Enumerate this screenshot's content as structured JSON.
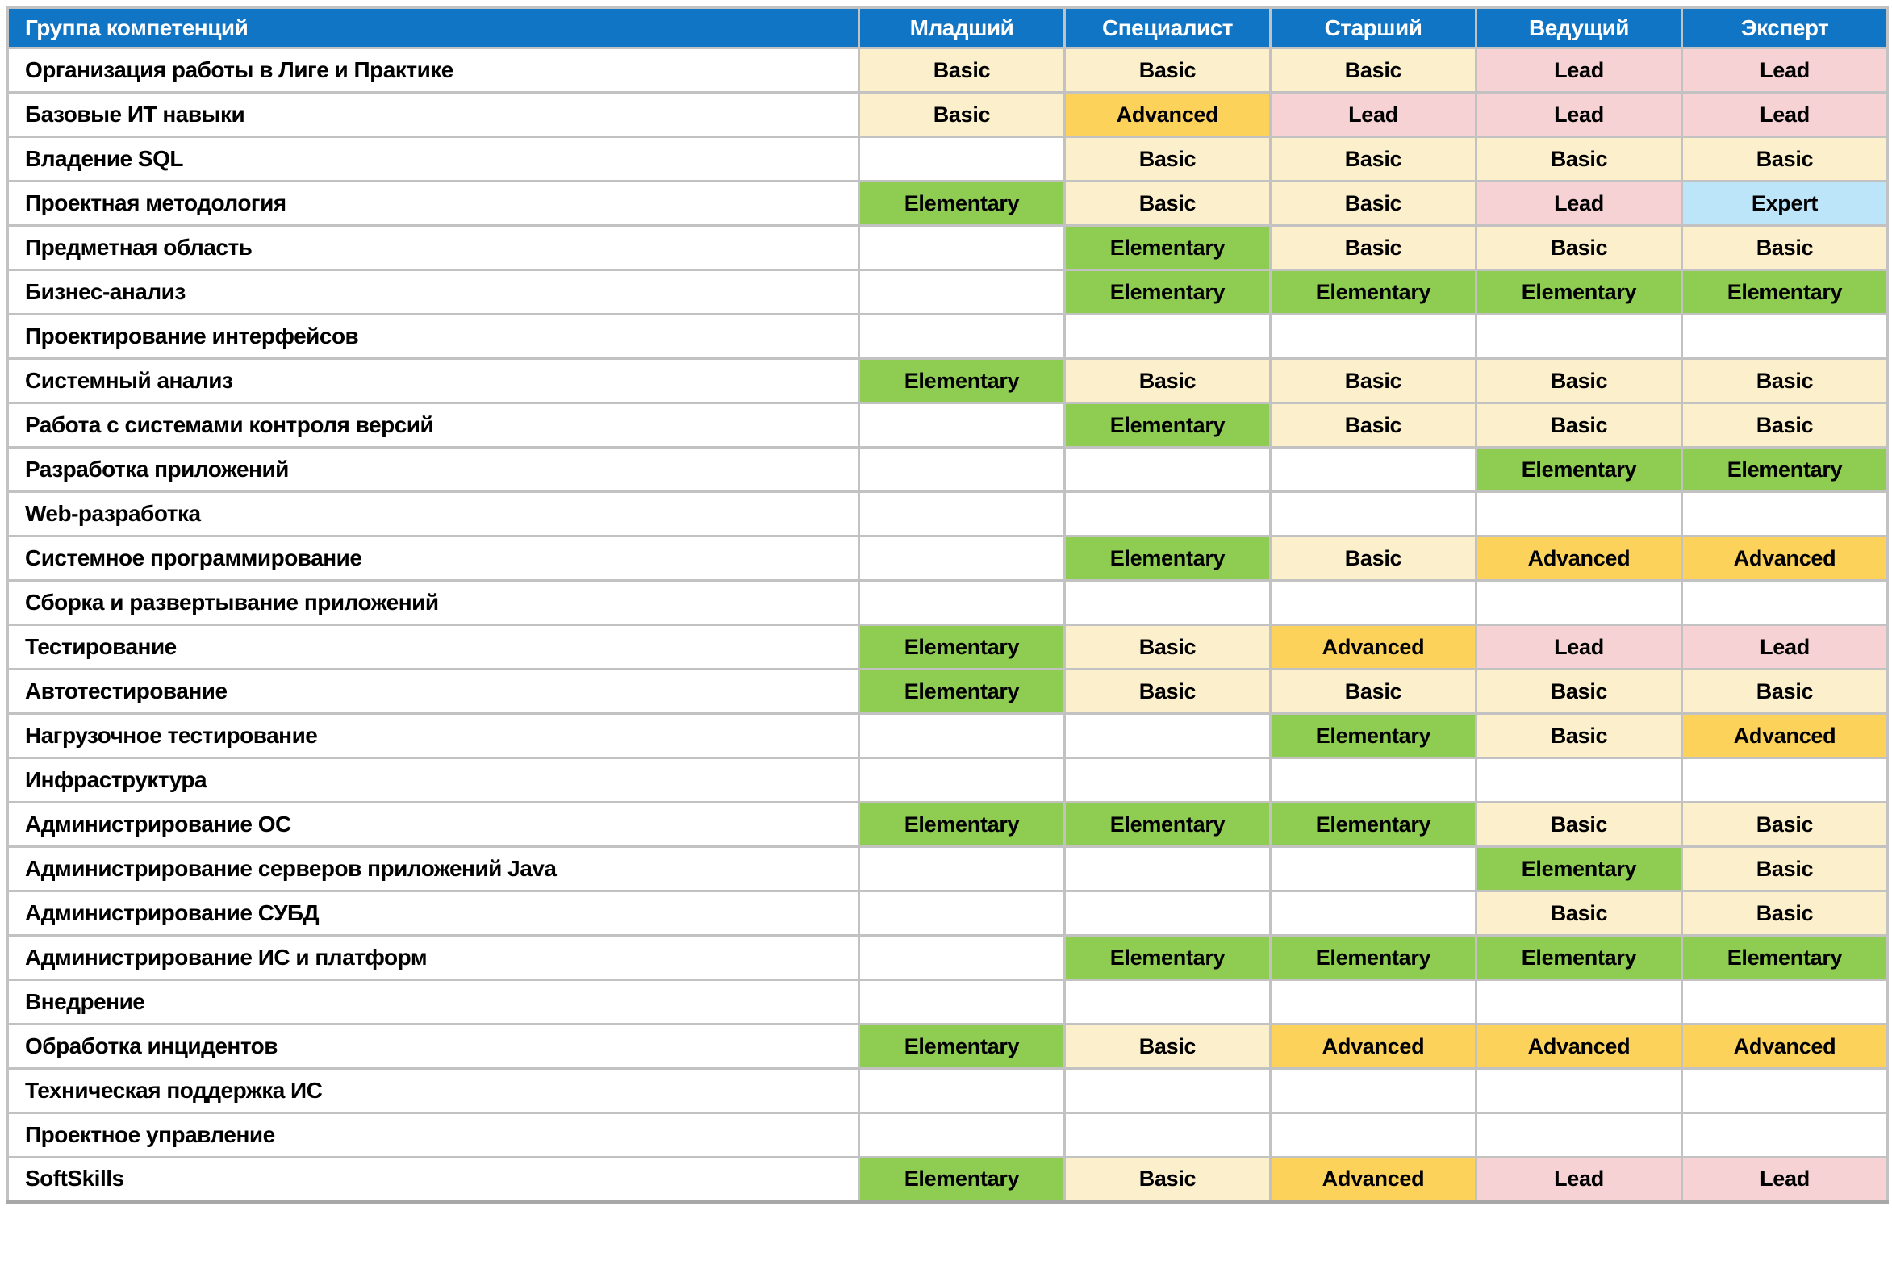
{
  "table": {
    "header": {
      "group_label": "Группа компетенций",
      "columns": [
        "Младший",
        "Специалист",
        "Старший",
        "Ведущий",
        "Эксперт"
      ]
    },
    "rows": [
      {
        "label": "Организация работы в Лиге и Практике",
        "levels": [
          "Basic",
          "Basic",
          "Basic",
          "Lead",
          "Lead"
        ]
      },
      {
        "label": "Базовые ИТ навыки",
        "levels": [
          "Basic",
          "Advanced",
          "Lead",
          "Lead",
          "Lead"
        ]
      },
      {
        "label": "Владение SQL",
        "levels": [
          "",
          "Basic",
          "Basic",
          "Basic",
          "Basic"
        ]
      },
      {
        "label": "Проектная методология",
        "levels": [
          "Elementary",
          "Basic",
          "Basic",
          "Lead",
          "Expert"
        ]
      },
      {
        "label": "Предметная область",
        "levels": [
          "",
          "Elementary",
          "Basic",
          "Basic",
          "Basic"
        ]
      },
      {
        "label": "Бизнес-анализ",
        "levels": [
          "",
          "Elementary",
          "Elementary",
          "Elementary",
          "Elementary"
        ]
      },
      {
        "label": "Проектирование интерфейсов",
        "levels": [
          "",
          "",
          "",
          "",
          ""
        ]
      },
      {
        "label": "Системный анализ",
        "levels": [
          "Elementary",
          "Basic",
          "Basic",
          "Basic",
          "Basic"
        ]
      },
      {
        "label": "Работа с системами контроля версий",
        "levels": [
          "",
          "Elementary",
          "Basic",
          "Basic",
          "Basic"
        ]
      },
      {
        "label": "Разработка приложений",
        "levels": [
          "",
          "",
          "",
          "Elementary",
          "Elementary"
        ]
      },
      {
        "label": "Web-разработка",
        "levels": [
          "",
          "",
          "",
          "",
          ""
        ]
      },
      {
        "label": "Системное программирование",
        "levels": [
          "",
          "Elementary",
          "Basic",
          "Advanced",
          "Advanced"
        ]
      },
      {
        "label": "Сборка и развертывание приложений",
        "levels": [
          "",
          "",
          "",
          "",
          ""
        ]
      },
      {
        "label": "Тестирование",
        "levels": [
          "Elementary",
          "Basic",
          "Advanced",
          "Lead",
          "Lead"
        ]
      },
      {
        "label": "Автотестирование",
        "levels": [
          "Elementary",
          "Basic",
          "Basic",
          "Basic",
          "Basic"
        ]
      },
      {
        "label": "Нагрузочное тестирование",
        "levels": [
          "",
          "",
          "Elementary",
          "Basic",
          "Advanced"
        ]
      },
      {
        "label": "Инфраструктура",
        "levels": [
          "",
          "",
          "",
          "",
          ""
        ]
      },
      {
        "label": "Администрирование ОС",
        "levels": [
          "Elementary",
          "Elementary",
          "Elementary",
          "Basic",
          "Basic"
        ]
      },
      {
        "label": "Администрирование серверов приложений Java",
        "levels": [
          "",
          "",
          "",
          "Elementary",
          "Basic"
        ]
      },
      {
        "label": "Администрирование СУБД",
        "levels": [
          "",
          "",
          "",
          "Basic",
          "Basic"
        ]
      },
      {
        "label": "Администрирование ИС и платформ",
        "levels": [
          "",
          "Elementary",
          "Elementary",
          "Elementary",
          "Elementary"
        ]
      },
      {
        "label": "Внедрение",
        "levels": [
          "",
          "",
          "",
          "",
          ""
        ]
      },
      {
        "label": "Обработка инцидентов",
        "levels": [
          "Elementary",
          "Basic",
          "Advanced",
          "Advanced",
          "Advanced"
        ]
      },
      {
        "label": "Техническая поддержка ИС",
        "levels": [
          "",
          "",
          "",
          "",
          ""
        ]
      },
      {
        "label": "Проектное управление",
        "levels": [
          "",
          "",
          "",
          "",
          ""
        ]
      },
      {
        "label": "SoftSkills",
        "levels": [
          "Elementary",
          "Basic",
          "Advanced",
          "Lead",
          "Lead"
        ]
      }
    ]
  },
  "colors": {
    "header_bg": "#1075C4",
    "header_text": "#FFFFFF",
    "grid_border": "#C2C2C2",
    "level_colors": {
      "Elementary": "#8ECC52",
      "Basic": "#FCEFCB",
      "Advanced": "#FCD25B",
      "Lead": "#F7D2D4",
      "Expert": "#BCE5FA"
    }
  }
}
